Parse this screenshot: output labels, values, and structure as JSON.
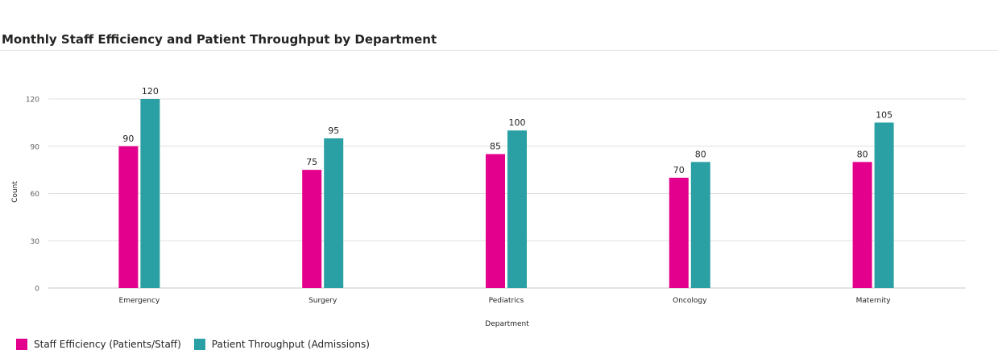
{
  "title": "Monthly Staff Efficiency and Patient Throughput by Department",
  "chart_data": {
    "type": "bar",
    "title": "Monthly Staff Efficiency and Patient Throughput by Department",
    "xlabel": "Department",
    "ylabel": "Count",
    "categories": [
      "Emergency",
      "Surgery",
      "Pediatrics",
      "Oncology",
      "Maternity"
    ],
    "series": [
      {
        "name": "Staff Efficiency (Patients/Staff)",
        "values": [
          90,
          75,
          85,
          70,
          80
        ],
        "color": "#e3008c"
      },
      {
        "name": "Patient Throughput (Admissions)",
        "values": [
          120,
          95,
          100,
          80,
          105
        ],
        "color": "#2aa0a4"
      }
    ],
    "yticks": [
      0,
      30,
      60,
      90,
      120
    ],
    "ylim": [
      0,
      120
    ],
    "grid": true,
    "legend_position": "bottom-left"
  }
}
